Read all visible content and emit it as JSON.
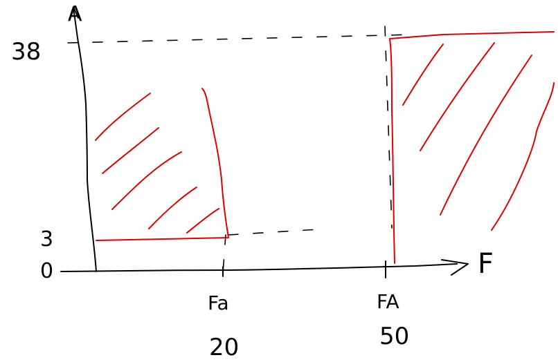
{
  "diagram": {
    "y_axis_label": "A",
    "x_axis_label": "F",
    "origin_label": "0",
    "y_ticks": [
      "38",
      "3"
    ],
    "x_tick_symbols": [
      "Fa",
      "FA"
    ],
    "x_tick_values": [
      "20",
      "50"
    ],
    "ink_color": "#000000",
    "shade_color": "#e00000"
  }
}
